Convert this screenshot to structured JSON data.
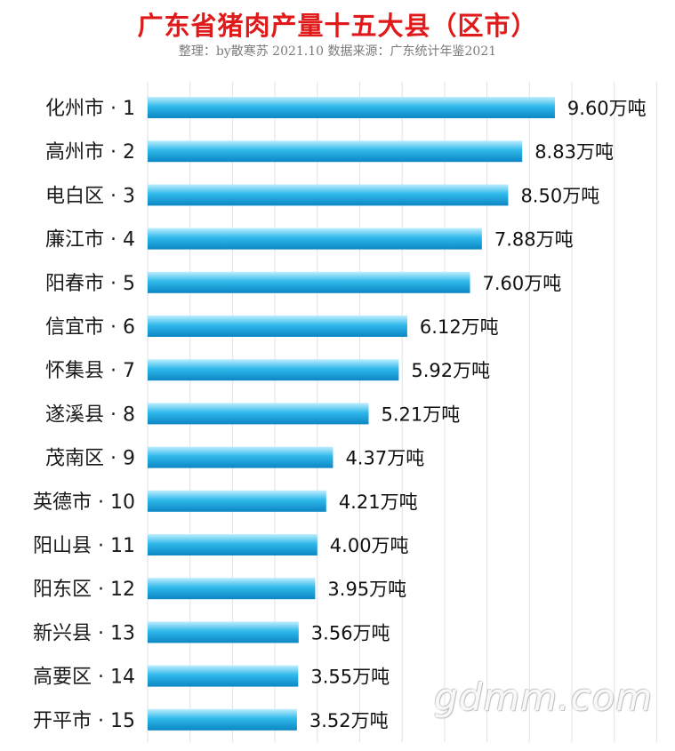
{
  "header": {
    "title": "广东省猪肉产量十五大县（区市）",
    "subtitle": "整理：by散寒苏 2021.10 数据来源：广东统计年鉴2021"
  },
  "watermark": "gdmm.com",
  "colors": {
    "title": "#e01a1a",
    "bar_light": "#bfeeff",
    "bar_mid": "#2fb9ea",
    "bar_dark": "#0c86c4",
    "gridline": "#e2e2e2"
  },
  "chart_data": {
    "type": "bar",
    "orientation": "horizontal",
    "title": "广东省猪肉产量十五大县（区市）",
    "unit": "万吨",
    "categories": [
      "化州市 · 1",
      "高州市 · 2",
      "电白区 · 3",
      "廉江市 · 4",
      "阳春市 · 5",
      "信宜市 · 6",
      "怀集县 · 7",
      "遂溪县 · 8",
      "茂南区 · 9",
      "英德市 · 10",
      "阳山县 · 11",
      "阳东区 · 12",
      "新兴县 · 13",
      "高要区 · 14",
      "开平市 · 15"
    ],
    "values": [
      9.6,
      8.83,
      8.5,
      7.88,
      7.6,
      6.12,
      5.92,
      5.21,
      4.37,
      4.21,
      4.0,
      3.95,
      3.56,
      3.55,
      3.52
    ],
    "value_labels": [
      "9.60万吨",
      "8.83万吨",
      "8.50万吨",
      "7.88万吨",
      "7.60万吨",
      "6.12万吨",
      "5.92万吨",
      "5.21万吨",
      "4.37万吨",
      "4.21万吨",
      "4.00万吨",
      "3.95万吨",
      "3.56万吨",
      "3.55万吨",
      "3.52万吨"
    ],
    "xlim": [
      0,
      10
    ],
    "grid": true,
    "legend": "none"
  }
}
